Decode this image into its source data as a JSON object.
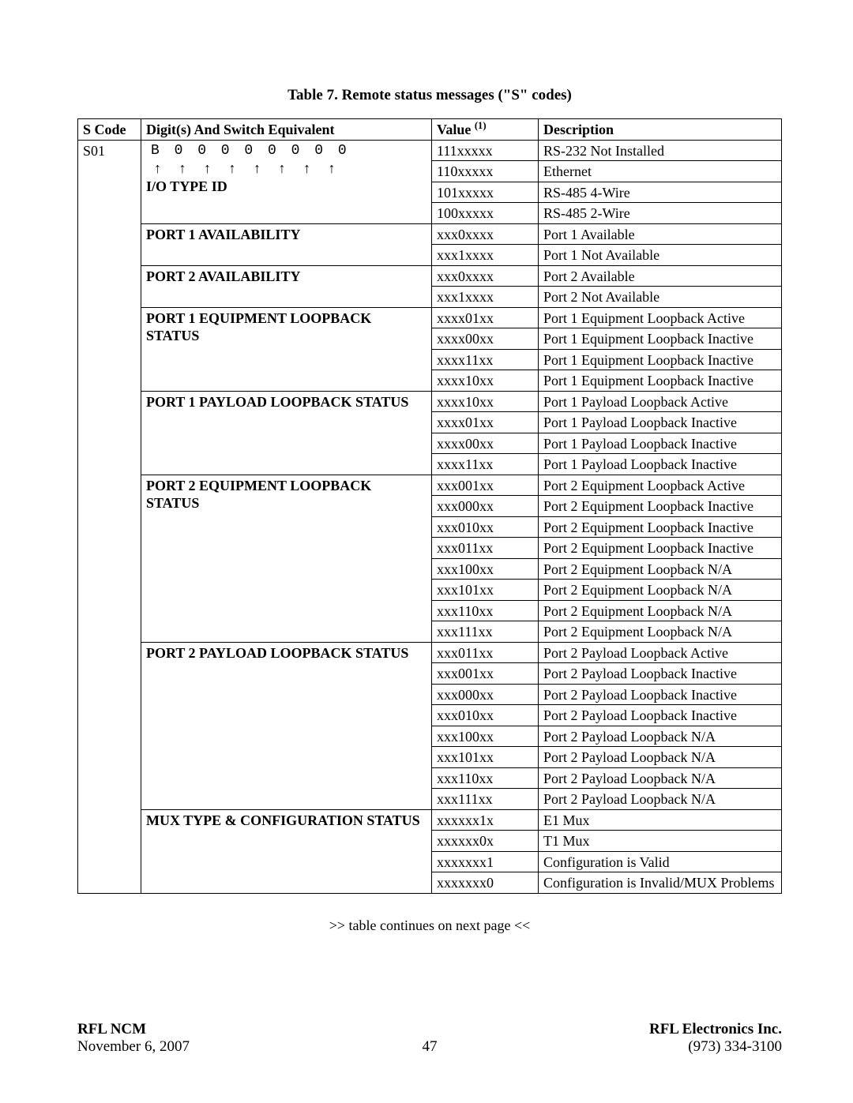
{
  "caption": "Table 7. Remote status messages (\"S\" codes)",
  "continues_note": ">> table continues on next page <<",
  "footer": {
    "left_bold": "RFL NCM",
    "right_bold": "RFL Electronics Inc.",
    "left_plain": "November 6, 2007",
    "page_num": "47",
    "right_plain": "(973) 334-3100"
  },
  "columns": {
    "c1": "S Code",
    "c2": "Digit(s) And Switch Equivalent",
    "c3_pre": "Value ",
    "c3_sup": "(1)",
    "c4": "Description"
  },
  "scode": "S01",
  "digit_line": "B 0 0 0 0 0 0 0 0",
  "arrow_line": "↑ ↑ ↑ ↑ ↑ ↑ ↑ ↑",
  "sections": [
    {
      "label": "I/O TYPE ID",
      "rows": [
        {
          "value": "111xxxxx",
          "desc": "RS-232 Not Installed",
          "preblank": true
        },
        {
          "value": "110xxxxx",
          "desc": "Ethernet",
          "arrowsrow": true
        },
        {
          "value": "101xxxxx",
          "desc": "RS-485 4-Wire"
        },
        {
          "value": "100xxxxx",
          "desc": "RS-485 2-Wire"
        }
      ]
    },
    {
      "label": "PORT 1 AVAILABILITY",
      "rows": [
        {
          "value": "xxx0xxxx",
          "desc": "Port 1 Available"
        },
        {
          "value": "xxx1xxxx",
          "desc": "Port 1 Not Available"
        }
      ]
    },
    {
      "label": "PORT 2 AVAILABILITY",
      "rows": [
        {
          "value": "xxx0xxxx",
          "desc": "Port 2 Available"
        },
        {
          "value": "xxx1xxxx",
          "desc": "Port 2 Not Available"
        }
      ]
    },
    {
      "label": "PORT 1 EQUIPMENT LOOPBACK STATUS",
      "rows": [
        {
          "value": "xxxx01xx",
          "desc": "Port 1 Equipment Loopback Active"
        },
        {
          "value": "xxxx00xx",
          "desc": "Port 1 Equipment Loopback Inactive"
        },
        {
          "value": "xxxx11xx",
          "desc": "Port 1 Equipment Loopback Inactive"
        },
        {
          "value": "xxxx10xx",
          "desc": "Port 1 Equipment Loopback Inactive"
        }
      ]
    },
    {
      "label": "PORT 1 PAYLOAD LOOPBACK STATUS",
      "rows": [
        {
          "value": "xxxx10xx",
          "desc": "Port 1 Payload Loopback Active"
        },
        {
          "value": "xxxx01xx",
          "desc": "Port 1 Payload Loopback Inactive"
        },
        {
          "value": "xxxx00xx",
          "desc": "Port 1 Payload Loopback Inactive"
        },
        {
          "value": "xxxx11xx",
          "desc": "Port 1 Payload Loopback Inactive"
        }
      ]
    },
    {
      "label": "PORT 2 EQUIPMENT LOOPBACK STATUS",
      "rows": [
        {
          "value": "xxx001xx",
          "desc": "Port 2 Equipment Loopback Active"
        },
        {
          "value": "xxx000xx",
          "desc": "Port 2 Equipment Loopback Inactive"
        },
        {
          "value": "xxx010xx",
          "desc": "Port 2 Equipment Loopback Inactive"
        },
        {
          "value": "xxx011xx",
          "desc": "Port 2 Equipment Loopback Inactive"
        },
        {
          "value": "xxx100xx",
          "desc": "Port 2 Equipment Loopback N/A"
        },
        {
          "value": "xxx101xx",
          "desc": "Port 2 Equipment Loopback N/A"
        },
        {
          "value": "xxx110xx",
          "desc": "Port 2 Equipment Loopback N/A"
        },
        {
          "value": "xxx111xx",
          "desc": "Port 2 Equipment Loopback N/A"
        }
      ]
    },
    {
      "label": "PORT 2 PAYLOAD LOOPBACK STATUS",
      "rows": [
        {
          "value": "xxx011xx",
          "desc": "Port 2 Payload Loopback Active"
        },
        {
          "value": "xxx001xx",
          "desc": "Port 2 Payload Loopback Inactive"
        },
        {
          "value": "xxx000xx",
          "desc": "Port 2 Payload Loopback Inactive"
        },
        {
          "value": "xxx010xx",
          "desc": "Port 2 Payload  Loopback Inactive"
        },
        {
          "value": "xxx100xx",
          "desc": "Port 2 Payload  Loopback N/A"
        },
        {
          "value": "xxx101xx",
          "desc": "Port 2 Payload Loopback N/A"
        },
        {
          "value": "xxx110xx",
          "desc": "Port 2 Payload Loopback N/A"
        },
        {
          "value": "xxx111xx",
          "desc": "Port 2 Payload Loopback N/A"
        }
      ]
    },
    {
      "label": "MUX TYPE & CONFIGURATION STATUS",
      "rows": [
        {
          "value": "xxxxxx1x",
          "desc": "E1 Mux"
        },
        {
          "value": "xxxxxx0x",
          "desc": "T1 Mux"
        },
        {
          "value": "xxxxxxx1",
          "desc": "Configuration is Valid"
        },
        {
          "value": "xxxxxxx0",
          "desc": "Configuration is Invalid/MUX Problems"
        }
      ]
    }
  ]
}
